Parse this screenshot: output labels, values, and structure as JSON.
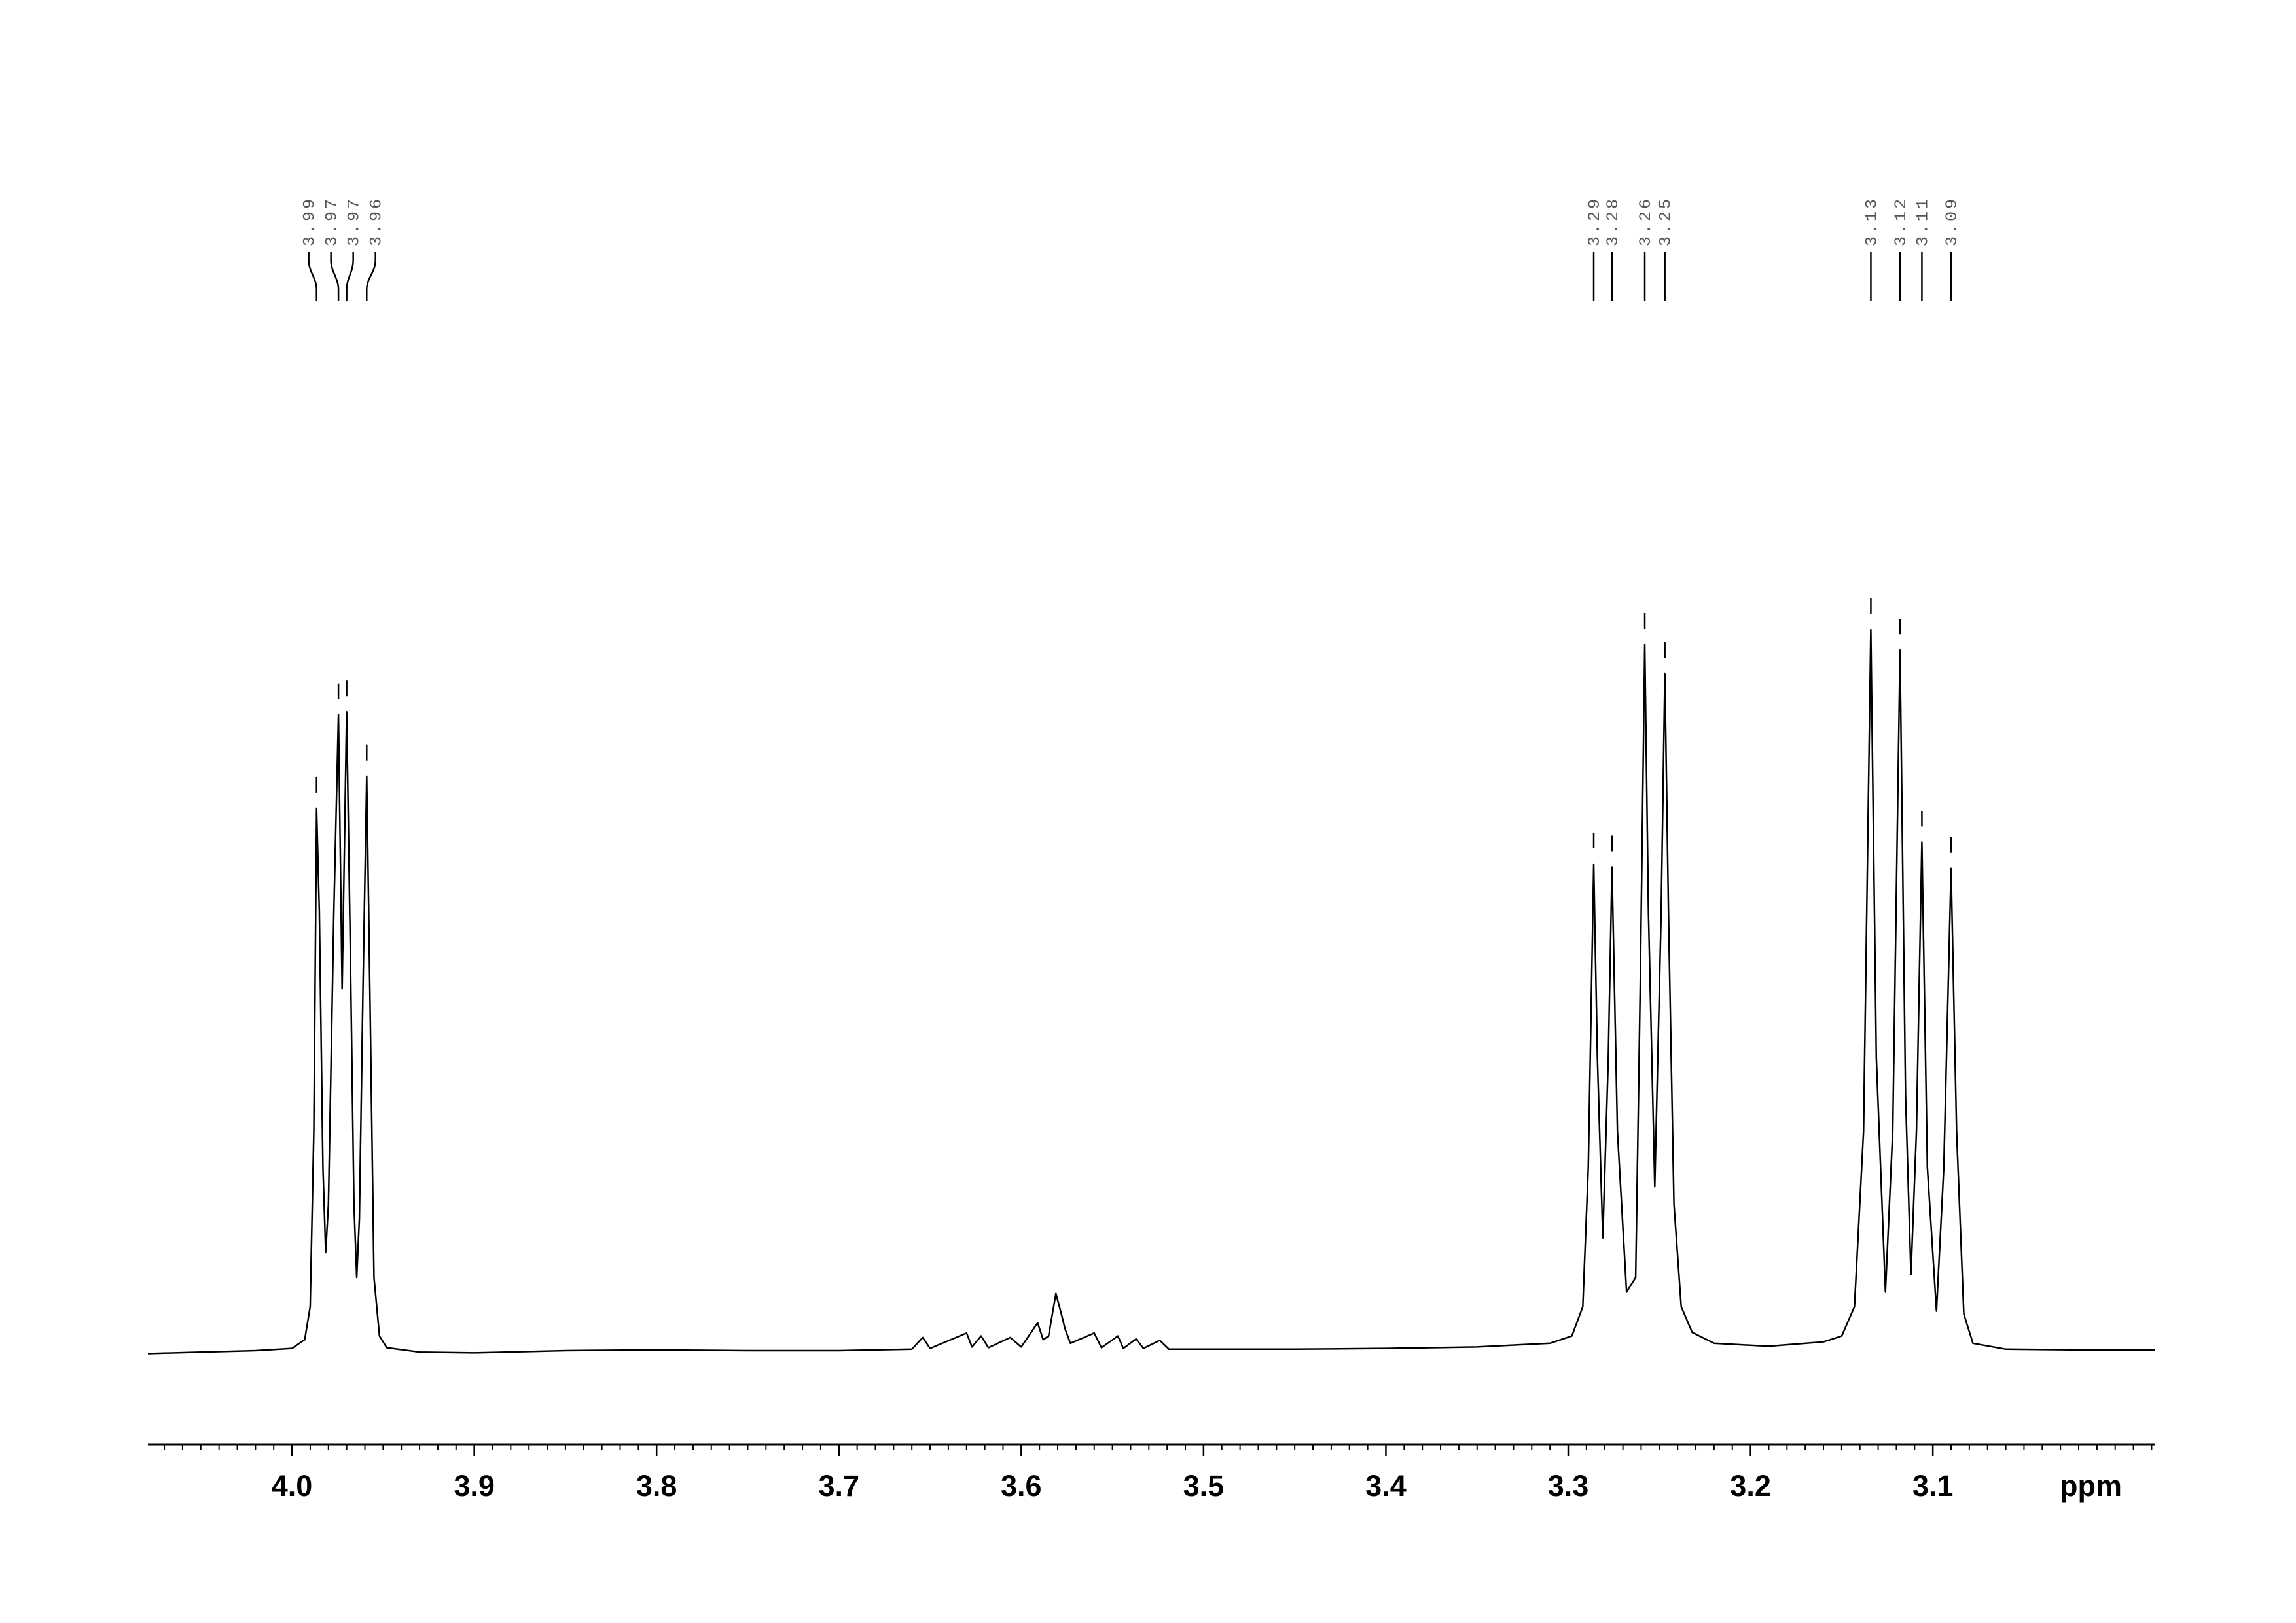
{
  "chart_data": {
    "type": "line",
    "color": "#000000",
    "x_label": "ppm",
    "xlim": [
      4.079,
      2.978
    ],
    "xticks": [
      {
        "value": 4,
        "label": "4.0"
      },
      3.9,
      3.8,
      3.7,
      3.6,
      3.5,
      3.4,
      3.3,
      3.2,
      3.1
    ],
    "minor_tick_step": 0.01,
    "ylim": [
      0,
      100
    ],
    "x": [
      4.079,
      4.05,
      4.02,
      4.0,
      3.993,
      3.99,
      3.988,
      3.9865,
      3.985,
      3.983,
      3.9815,
      3.98,
      3.977,
      3.9745,
      3.9725,
      3.97,
      3.968,
      3.966,
      3.9645,
      3.963,
      3.961,
      3.959,
      3.957,
      3.955,
      3.952,
      3.948,
      3.93,
      3.9,
      3.85,
      3.8,
      3.75,
      3.7,
      3.66,
      3.654,
      3.65,
      3.63,
      3.627,
      3.622,
      3.618,
      3.606,
      3.6,
      3.591,
      3.588,
      3.585,
      3.581,
      3.578,
      3.576,
      3.573,
      3.56,
      3.556,
      3.547,
      3.544,
      3.537,
      3.533,
      3.524,
      3.519,
      3.45,
      3.4,
      3.35,
      3.31,
      3.298,
      3.292,
      3.289,
      3.286,
      3.284,
      3.281,
      3.278,
      3.276,
      3.273,
      3.268,
      3.263,
      3.2605,
      3.258,
      3.256,
      3.2525,
      3.249,
      3.247,
      3.245,
      3.242,
      3.238,
      3.232,
      3.22,
      3.19,
      3.16,
      3.15,
      3.143,
      3.138,
      3.134,
      3.131,
      3.126,
      3.122,
      3.118,
      3.115,
      3.112,
      3.109,
      3.106,
      3.103,
      3.098,
      3.094,
      3.09,
      3.087,
      3.083,
      3.078,
      3.06,
      3.02,
      2.978
    ],
    "values": [
      -0.4,
      -0.2,
      0,
      0.3,
      1.5,
      6,
      30,
      74,
      60,
      25,
      13.4,
      20,
      60,
      86.8,
      49.4,
      87.2,
      55,
      20,
      10,
      18,
      50,
      78.4,
      45,
      10,
      2,
      0.4,
      -0.2,
      -0.3,
      0,
      0.1,
      0,
      0,
      0.2,
      1.8,
      0.3,
      2.4,
      0.5,
      2,
      0.4,
      1.8,
      0.5,
      3.8,
      1.5,
      2,
      7.8,
      5,
      3,
      1,
      2.4,
      0.4,
      2,
      0.3,
      1.6,
      0.3,
      1.4,
      0.2,
      0.2,
      0.3,
      0.5,
      1,
      2,
      6,
      25,
      66.4,
      40,
      15.4,
      40,
      66,
      30,
      8,
      10,
      50,
      96.4,
      60,
      22.4,
      60,
      92.4,
      60,
      20,
      6,
      2.5,
      1,
      0.6,
      1.2,
      2,
      6,
      30,
      98.4,
      40,
      8,
      30,
      95.6,
      35,
      10.4,
      30,
      69.4,
      25,
      5.4,
      25,
      65.8,
      30,
      5,
      1,
      0.2,
      0.1,
      0.1
    ],
    "peaks": {
      "x": [
        3.9865,
        3.9745,
        3.97,
        3.959,
        3.286,
        3.276,
        3.258,
        3.247,
        3.134,
        3.118,
        3.106,
        3.09
      ],
      "heights": [
        74,
        86.8,
        87.2,
        78.4,
        66.4,
        66,
        96.4,
        92.4,
        98.4,
        95.6,
        69.4,
        65.8
      ],
      "labels": [
        "3.99",
        "3.97",
        "3.97",
        "3.96",
        "3.29",
        "3.28",
        "3.26",
        "3.25",
        "3.13",
        "3.12",
        "3.11",
        "3.09"
      ]
    }
  }
}
